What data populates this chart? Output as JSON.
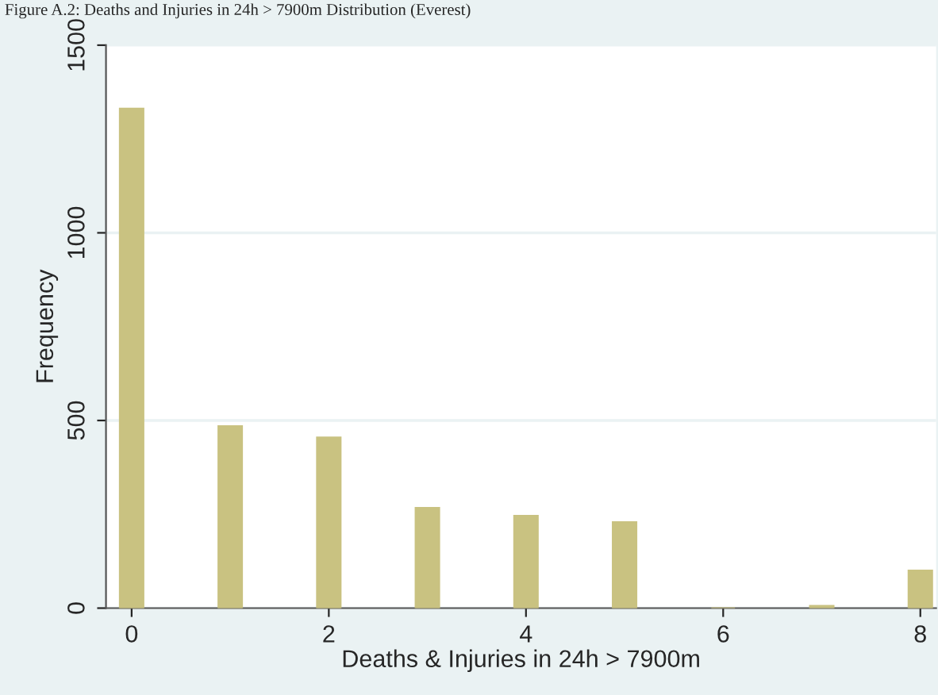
{
  "chart_data": {
    "type": "bar",
    "title": "Figure A.2: Deaths and Injuries in 24h > 7900m Distribution (Everest)",
    "xlabel": "Deaths & Injuries in 24h > 7900m",
    "ylabel": "Frequency",
    "x": [
      0,
      1,
      2,
      3,
      4,
      5,
      6,
      7,
      8
    ],
    "series": [
      {
        "color": "#c9c281",
        "values": [
          1331,
          485,
          455,
          267,
          246,
          229,
          0,
          6,
          100
        ]
      }
    ],
    "xlim": [
      -0.26,
      8.16
    ],
    "xticks": [
      0,
      2,
      4,
      6,
      8
    ],
    "ylim": [
      0,
      1500
    ],
    "yticks": [
      0,
      500,
      1000,
      1500
    ],
    "grid": "y"
  }
}
